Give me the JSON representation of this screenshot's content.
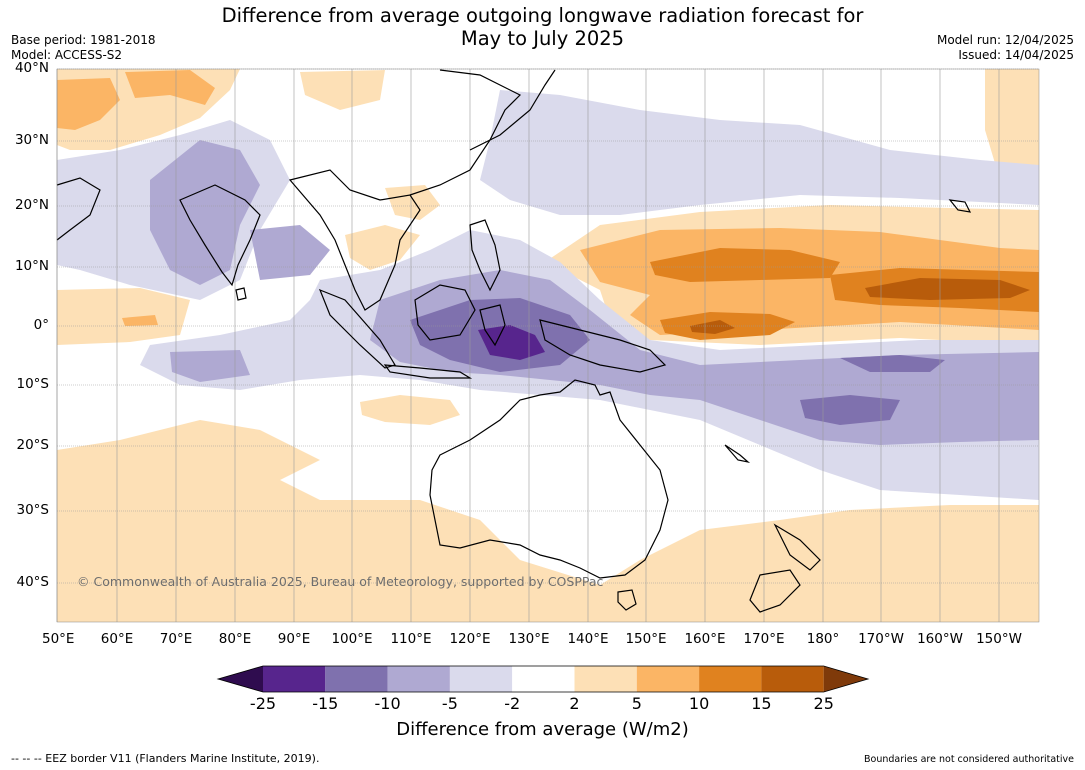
{
  "title_line1": "Difference from average outgoing longwave radiation forecast for",
  "title_line2": "May to July 2025",
  "base_period": "Base period: 1981-2018",
  "model": "Model: ACCESS-S2",
  "model_run": "Model run: 12/04/2025",
  "issued": "Issued: 14/04/2025",
  "copyright": "© Commonwealth of Australia 2025, Bureau of Meteorology, supported by COSPPac",
  "footer_left": "--  --  -- EEZ border V11 (Flanders Marine Institute, 2019).",
  "footer_right": "Boundaries are not considered authoritative",
  "colorbar": {
    "title": "Difference from average (W/m2)",
    "tick_labels": [
      "-25",
      "-15",
      "-10",
      "-5",
      "-2",
      "2",
      "5",
      "10",
      "15",
      "25"
    ],
    "colors": [
      "#2f0c4f",
      "#57258d",
      "#7f71ae",
      "#afa9d2",
      "#dadaec",
      "#ffffff",
      "#fde0b6",
      "#fbb565",
      "#e0821f",
      "#b85c0b",
      "#7f3a0a"
    ]
  },
  "map": {
    "lon_labels": [
      "50°E",
      "60°E",
      "70°E",
      "80°E",
      "90°E",
      "100°E",
      "110°E",
      "120°E",
      "130°E",
      "140°E",
      "150°E",
      "160°E",
      "170°E",
      "180°",
      "170°W",
      "160°W",
      "150°W"
    ],
    "lat_labels": [
      "40°N",
      "30°N",
      "20°N",
      "10°N",
      "0°",
      "10°S",
      "20°S",
      "30°S",
      "40°S"
    ]
  }
}
